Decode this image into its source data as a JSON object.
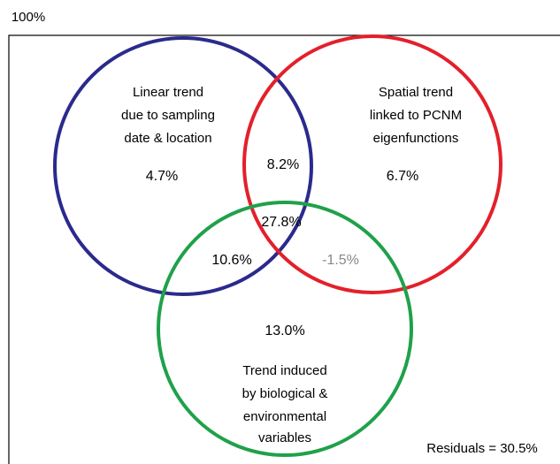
{
  "header": {
    "title": "100%"
  },
  "sets": [
    {
      "label": [
        "Linear trend",
        "due to sampling",
        "date & location"
      ],
      "value": "4.7%"
    },
    {
      "label": [
        "Spatial trend",
        "linked to PCNM",
        "eigenfunctions"
      ],
      "value": "6.7%"
    },
    {
      "label": [
        "Trend induced",
        "by biological &",
        "environmental",
        "variables"
      ],
      "value": "13.0%"
    }
  ],
  "intersections": {
    "linear_spatial": "8.2%",
    "all_three": "27.8%",
    "linear_biological": "10.6%",
    "spatial_biological": "-1.5%"
  },
  "residuals": "Residuals = 30.5%"
}
